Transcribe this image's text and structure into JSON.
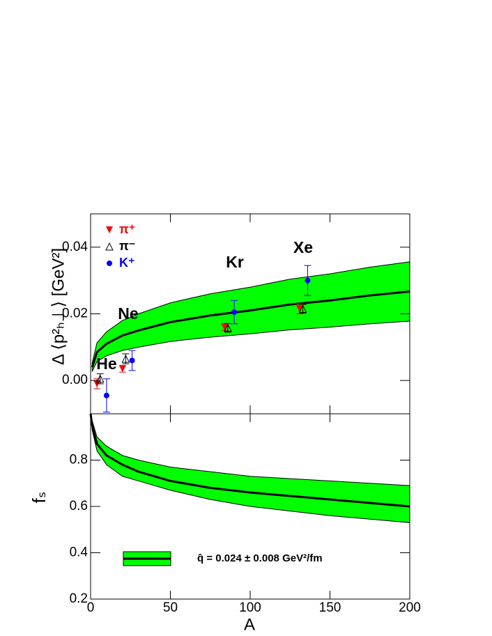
{
  "chart_data": [
    {
      "type": "line",
      "y_label": "Δ ⟨p²ₕ⊥⟩ [GeV²]",
      "xlim": [
        0,
        200
      ],
      "xticks": [
        0,
        50,
        100,
        150,
        200
      ],
      "ylim": [
        -0.01,
        0.05
      ],
      "yticks": [
        {
          "value": 0,
          "label": "0.00"
        },
        0.02,
        0.04
      ],
      "annotations": [
        "He",
        "Ne",
        "Kr",
        "Xe"
      ],
      "curve": {
        "color": "#000000",
        "band_color": "#00ff00",
        "x": [
          1,
          4,
          10,
          20,
          30,
          50,
          75,
          100,
          125,
          150,
          175,
          200
        ],
        "values": [
          0.004,
          0.0085,
          0.011,
          0.0135,
          0.015,
          0.0175,
          0.0195,
          0.021,
          0.0228,
          0.024,
          0.0255,
          0.0267
        ],
        "lower": [
          0.0027,
          0.0057,
          0.0074,
          0.009,
          0.01,
          0.0117,
          0.013,
          0.014,
          0.0152,
          0.016,
          0.017,
          0.0178
        ],
        "upper": [
          0.0053,
          0.0113,
          0.0146,
          0.018,
          0.02,
          0.0233,
          0.026,
          0.028,
          0.0304,
          0.032,
          0.034,
          0.0356
        ]
      },
      "series": [
        {
          "name": "π⁺",
          "color": "#ff0000",
          "marker": "down-triangle",
          "x": [
            4,
            20,
            84,
            131
          ],
          "values": [
            -0.001,
            0.0035,
            0.016,
            0.0215
          ],
          "errors": [
            0.0015,
            0.001,
            0.001,
            0.0015
          ]
        },
        {
          "name": "π⁻",
          "color": "#000000",
          "marker": "open-triangle",
          "x": [
            6,
            22,
            86,
            133
          ],
          "values": [
            0.0005,
            0.0065,
            0.0158,
            0.0215
          ],
          "errors": [
            0.0015,
            0.0015,
            0.0013,
            0.0013
          ]
        },
        {
          "name": "K⁺",
          "color": "#0000ff",
          "marker": "circle",
          "x": [
            10,
            26,
            90,
            136
          ],
          "values": [
            -0.0045,
            0.006,
            0.0205,
            0.03
          ],
          "errors": [
            0.005,
            0.003,
            0.0035,
            0.0045
          ]
        }
      ]
    },
    {
      "type": "line",
      "x_label": "A",
      "y_label": "fₛ",
      "xlim": [
        0,
        200
      ],
      "xticks": [
        0,
        50,
        100,
        150,
        200
      ],
      "ylim": [
        0.2,
        1.0
      ],
      "yticks": [
        0.2,
        0.4,
        0.6,
        0.8
      ],
      "legend_label": "q̂ = 0.024 ± 0.008 GeV²/fm",
      "curve": {
        "color": "#000000",
        "band_color": "#00ff00",
        "x": [
          0,
          1,
          4,
          10,
          20,
          30,
          50,
          75,
          100,
          125,
          150,
          175,
          200
        ],
        "values": [
          1.0,
          0.95,
          0.87,
          0.82,
          0.78,
          0.75,
          0.71,
          0.68,
          0.66,
          0.645,
          0.63,
          0.615,
          0.6
        ],
        "lower": [
          1.0,
          0.93,
          0.84,
          0.78,
          0.73,
          0.71,
          0.67,
          0.63,
          0.6,
          0.58,
          0.56,
          0.545,
          0.53
        ],
        "upper": [
          1.0,
          0.97,
          0.9,
          0.86,
          0.82,
          0.8,
          0.77,
          0.75,
          0.73,
          0.72,
          0.71,
          0.7,
          0.69
        ]
      }
    }
  ]
}
